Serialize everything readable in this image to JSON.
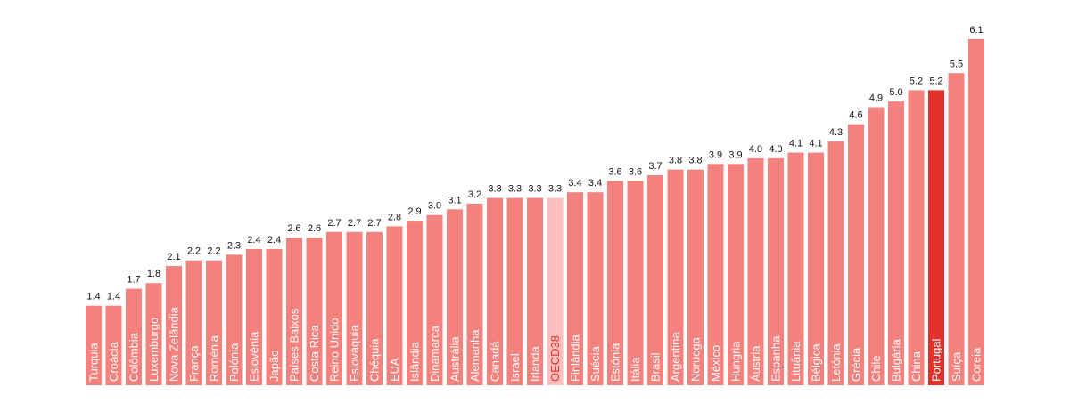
{
  "chart_data": {
    "type": "bar",
    "categories": [
      "Turquia",
      "Croácia",
      "Colômbia",
      "Luxemburgo",
      "Nova Zelândia",
      "França",
      "Roménia",
      "Polónia",
      "Eslovénia",
      "Japão",
      "Países Baixos",
      "Costa Rica",
      "Reino Unido",
      "Eslováquia",
      "Chéquia",
      "EUA",
      "Islândia",
      "Dinamarca",
      "Austrália",
      "Alemanha",
      "Canadá",
      "Israel",
      "Irlanda",
      "OECD38",
      "Finlândia",
      "Suécia",
      "Estónia",
      "Itália",
      "Brasil",
      "Argentina",
      "Noruega",
      "México",
      "Hungria",
      "Áustria",
      "Espanha",
      "Lituânia",
      "Bélgica",
      "Letónia",
      "Grécia",
      "Chile",
      "Bulgária",
      "China",
      "Portugal",
      "Suíça",
      "Coreia"
    ],
    "values": [
      1.4,
      1.4,
      1.7,
      1.8,
      2.1,
      2.2,
      2.2,
      2.3,
      2.4,
      2.4,
      2.6,
      2.6,
      2.7,
      2.7,
      2.7,
      2.8,
      2.9,
      3.0,
      3.1,
      3.2,
      3.3,
      3.3,
      3.3,
      3.3,
      3.4,
      3.4,
      3.6,
      3.6,
      3.7,
      3.8,
      3.8,
      3.9,
      3.9,
      4.0,
      4.0,
      4.1,
      4.1,
      4.3,
      4.6,
      4.9,
      5.0,
      5.2,
      5.2,
      5.5,
      6.1
    ],
    "value_labels": [
      "1.4",
      "1.4",
      "1.7",
      "1.8",
      "2.1",
      "2.2",
      "2.2",
      "2.3",
      "2.4",
      "2.4",
      "2.6",
      "2.6",
      "2.7",
      "2.7",
      "2.7",
      "2.8",
      "2.9",
      "3.0",
      "3.1",
      "3.2",
      "3.3",
      "3.3",
      "3.3",
      "3.3",
      "3.4",
      "3.4",
      "3.6",
      "3.6",
      "3.7",
      "3.8",
      "3.8",
      "3.9",
      "3.9",
      "4.0",
      "4.0",
      "4.1",
      "4.1",
      "4.3",
      "4.6",
      "4.9",
      "5.0",
      "5.2",
      "5.2",
      "5.5",
      "6.1"
    ],
    "title": "",
    "xlabel": "",
    "ylabel": "",
    "ylim": [
      0,
      6.1
    ],
    "grid": false,
    "highlight": {
      "Portugal": "#e3302a",
      "OECD38": "#fbc0bd"
    },
    "colors": {
      "default_bar": "#f3817d",
      "label_on_bar": "#ffffff",
      "label_on_highlight_light": "#e3302a",
      "value_text": "#111111"
    }
  }
}
